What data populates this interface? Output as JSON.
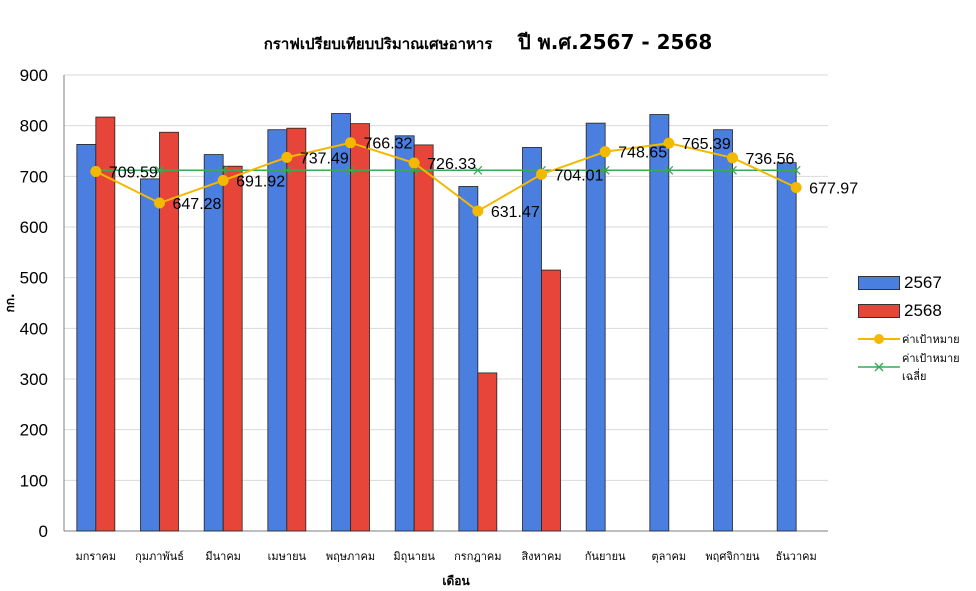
{
  "chart_data": {
    "type": "bar",
    "title": "กราฟเปรียบเทียบปริมาณเศษอาหาร",
    "subtitle": "ปี พ.ศ.2567 - 2568",
    "xlabel": "เดือน",
    "ylabel": "กก.",
    "ylim": [
      0,
      900
    ],
    "yticks": [
      "0",
      "100",
      "200",
      "300",
      "400",
      "500",
      "600",
      "700",
      "800",
      "900"
    ],
    "grid": true,
    "legend_position": "right",
    "categories": [
      "มกราคม",
      "กุมภาพันธ์",
      "มีนาคม",
      "เมษายน",
      "พฤษภาคม",
      "มิถุนายน",
      "กรกฎาคม",
      "สิงหาคม",
      "กันยายน",
      "ตุลาคม",
      "พฤศจิกายน",
      "ธันวาคม"
    ],
    "series": [
      {
        "name": "2567",
        "type": "bar",
        "color": "#4a7fe0",
        "values": [
          763,
          695,
          743,
          792,
          824,
          780,
          680,
          757,
          805,
          822,
          792,
          727
        ]
      },
      {
        "name": "2568",
        "type": "bar",
        "color": "#e8453a",
        "values": [
          817,
          787,
          720,
          795,
          804,
          762,
          312,
          515,
          null,
          null,
          null,
          null
        ]
      },
      {
        "name": "ค่าเป้าหมาย",
        "type": "line",
        "color": "#f4b800",
        "values": [
          709.59,
          647.28,
          691.92,
          737.49,
          766.32,
          726.33,
          631.47,
          704.01,
          748.65,
          765.39,
          736.56,
          677.97
        ],
        "labels": [
          "709.59",
          "647.28",
          "691.92",
          "737.49",
          "766.32",
          "726.33",
          "631.47",
          "704.01",
          "748.65",
          "765.39",
          "736.56",
          "677.97"
        ]
      },
      {
        "name": "ค่าเป้าหมายเฉลี่ย",
        "type": "line",
        "color": "#3aa856",
        "values": [
          711.92,
          711.92,
          711.92,
          711.92,
          711.92,
          711.92,
          711.92,
          711.92,
          711.92,
          711.92,
          711.92,
          711.92
        ]
      }
    ]
  }
}
